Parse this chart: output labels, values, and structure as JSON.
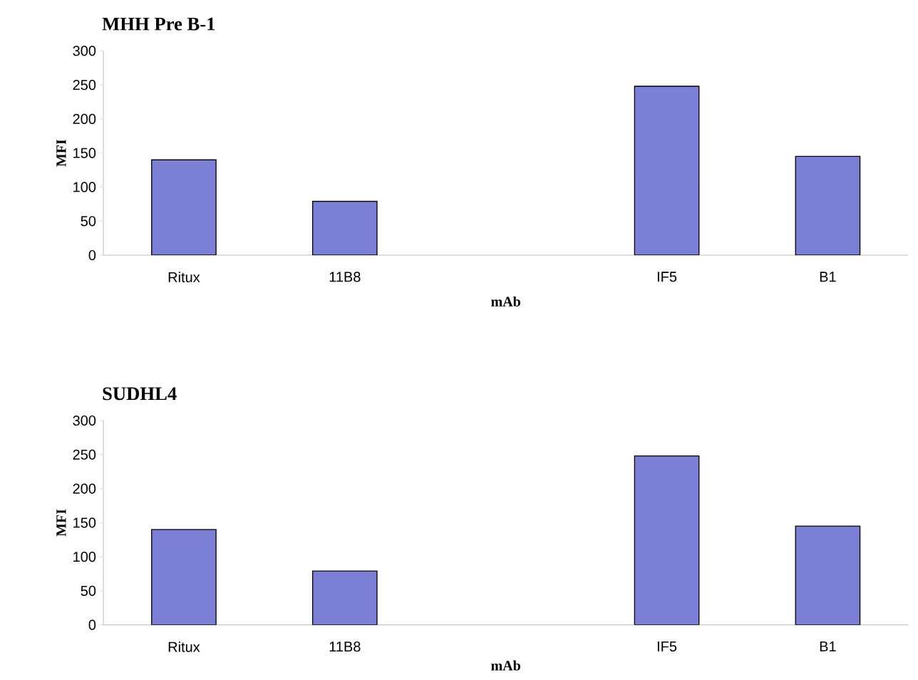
{
  "chart_data": [
    {
      "type": "bar",
      "title": "MHH Pre B-1",
      "xlabel": "mAb",
      "ylabel": "MFI",
      "categories": [
        "Ritux",
        "11B8",
        null,
        "IF5",
        "B1"
      ],
      "values": [
        140,
        79,
        null,
        248,
        145
      ],
      "color": "#7b7fd6",
      "ylim": [
        0,
        300
      ],
      "yticks": [
        0,
        50,
        100,
        150,
        200,
        250,
        300
      ],
      "grid": false
    },
    {
      "type": "bar",
      "title": "SUDHL4",
      "xlabel": "mAb",
      "ylabel": "MFI",
      "categories": [
        "Ritux",
        "11B8",
        null,
        "IF5",
        "B1"
      ],
      "values": [
        140,
        79,
        null,
        248,
        145
      ],
      "color": "#7b7fd6",
      "ylim": [
        0,
        300
      ],
      "yticks": [
        0,
        50,
        100,
        150,
        200,
        250,
        300
      ],
      "grid": false
    }
  ]
}
